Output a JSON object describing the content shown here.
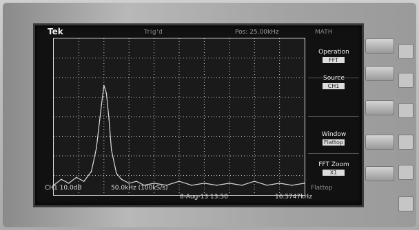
{
  "header": {
    "brand": "Tek",
    "trigger_status": "Trig'd",
    "position_label": "Pos: 25.00kHz",
    "menu_title": "MATH"
  },
  "side_menu": [
    {
      "label": "Operation",
      "value": "FFT"
    },
    {
      "label": "Source",
      "value": "CH1"
    },
    {
      "label": "Window",
      "value": "Flattop"
    },
    {
      "label": "FFT Zoom",
      "value": "X1"
    }
  ],
  "status_bar": {
    "channel_scale": "CH1 10.0dB",
    "span": "50.0kHz (100kS/s)",
    "date_time": "8-Aug-13 13:50",
    "frequency": "16.5747kHz",
    "window_status": "Flattop"
  },
  "colors": {
    "trace": "#dddddd",
    "screen": "#1a1a1a",
    "grid": "#cfcfcf"
  },
  "chart_data": {
    "type": "line",
    "title": "",
    "xlabel": "",
    "ylabel": "",
    "grid": true,
    "xlim": [
      0,
      10
    ],
    "ylim": [
      0,
      8
    ],
    "series": [
      {
        "x": [
          0,
          0.3,
          0.6,
          0.9,
          1.2,
          1.5,
          1.7,
          1.9,
          2.0,
          2.1,
          2.2,
          2.3,
          2.5,
          2.7,
          3.0,
          3.3,
          3.6,
          4,
          4.5,
          5,
          5.5,
          6,
          6.5,
          7,
          7.5,
          8,
          8.5,
          9,
          9.5,
          10
        ],
        "y": [
          0.5,
          0.8,
          0.6,
          0.9,
          0.7,
          1.2,
          2.4,
          4.6,
          5.6,
          5.2,
          3.9,
          2.3,
          1.1,
          0.8,
          0.6,
          0.7,
          0.5,
          0.6,
          0.5,
          0.7,
          0.5,
          0.6,
          0.5,
          0.6,
          0.5,
          0.7,
          0.5,
          0.6,
          0.5,
          0.6
        ]
      }
    ]
  }
}
